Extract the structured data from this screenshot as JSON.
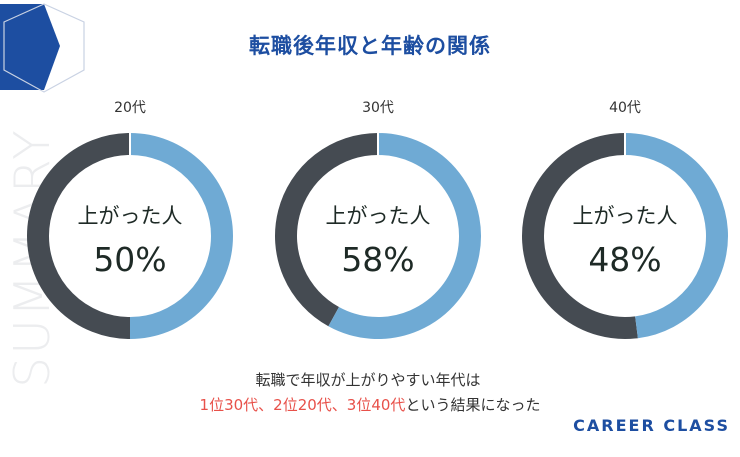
{
  "title": "転職後年収と年齢の関係",
  "side_label": "SUMMARY",
  "chart_data": [
    {
      "type": "pie",
      "title": "20代",
      "center_label": "上がった人",
      "value_label": "50%",
      "values": [
        50,
        50
      ]
    },
    {
      "type": "pie",
      "title": "30代",
      "center_label": "上がった人",
      "value_label": "58%",
      "values": [
        58,
        42
      ]
    },
    {
      "type": "pie",
      "title": "40代",
      "center_label": "上がった人",
      "value_label": "48%",
      "values": [
        48,
        52
      ]
    }
  ],
  "colors": {
    "increased": "#6faad4",
    "other": "#454b52",
    "title": "#1d4ea1",
    "accent": "#e8514a"
  },
  "caption": {
    "line1": "転職で年収が上がりやすい年代は",
    "line2_highlight": "1位30代、2位20代、3位40代",
    "line2_rest": "という結果になった"
  },
  "brand": "CAREER CLASS"
}
